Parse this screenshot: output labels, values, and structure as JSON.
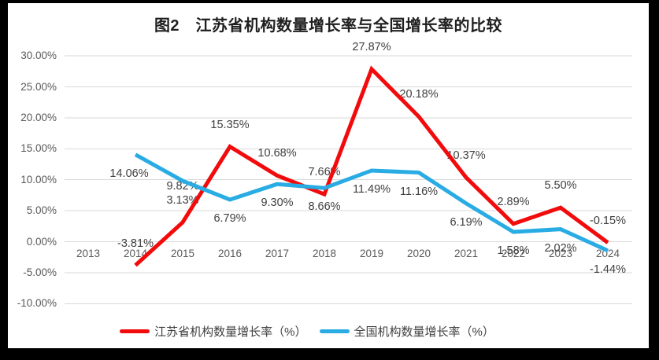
{
  "title": "图2　江苏省机构数量增长率与全国增长率的比较",
  "colors": {
    "jiangsu_red": "#F20B0C",
    "national_blue": "#29ACE3",
    "gridline": "#D9D9D9",
    "frame": "#000000",
    "tick_text": "#595959",
    "label_text": "#3F3F3F"
  },
  "chart_data": {
    "type": "line",
    "title": "图2　江苏省机构数量增长率与全国增长率的比较",
    "categories": [
      "2013",
      "2014",
      "2015",
      "2016",
      "2017",
      "2018",
      "2019",
      "2020",
      "2021",
      "2022",
      "2023",
      "2024"
    ],
    "ylim": [
      -10,
      30
    ],
    "grid": true,
    "legend_position": "bottom",
    "yticks": [
      {
        "v": 30,
        "label": "30.00%"
      },
      {
        "v": 25,
        "label": "25.00%"
      },
      {
        "v": 20,
        "label": "20.00%"
      },
      {
        "v": 15,
        "label": "15.00%"
      },
      {
        "v": 10,
        "label": "10.00%"
      },
      {
        "v": 5,
        "label": "5.00%"
      },
      {
        "v": 0,
        "label": "0.00%"
      },
      {
        "v": -5,
        "label": "-5.00%"
      },
      {
        "v": -10,
        "label": "-10.00%"
      }
    ],
    "series": [
      {
        "name": "江苏省机构数量增长率（%）",
        "color": "#F20B0C",
        "label_side": "above",
        "values": [
          null,
          -3.81,
          3.13,
          15.35,
          10.68,
          7.66,
          27.87,
          20.18,
          10.37,
          2.89,
          5.5,
          -0.15
        ],
        "labels": [
          null,
          "-3.81%",
          "3.13%",
          "15.35%",
          "10.68%",
          "7.66%",
          "27.87%",
          "20.18%",
          "10.37%",
          "2.89%",
          "5.50%",
          "-0.15%"
        ]
      },
      {
        "name": "全国机构数量增长率（%）",
        "color": "#29ACE3",
        "label_side": "below",
        "values": [
          null,
          14.06,
          9.82,
          6.79,
          9.3,
          8.66,
          11.49,
          11.16,
          6.19,
          1.58,
          2.02,
          -1.44
        ],
        "labels": [
          null,
          "14.06%",
          "9.82%",
          "6.79%",
          "9.30%",
          "8.66%",
          "11.49%",
          "11.16%",
          "6.19%",
          "1.58%",
          "2.02%",
          "-1.44%"
        ]
      }
    ]
  }
}
